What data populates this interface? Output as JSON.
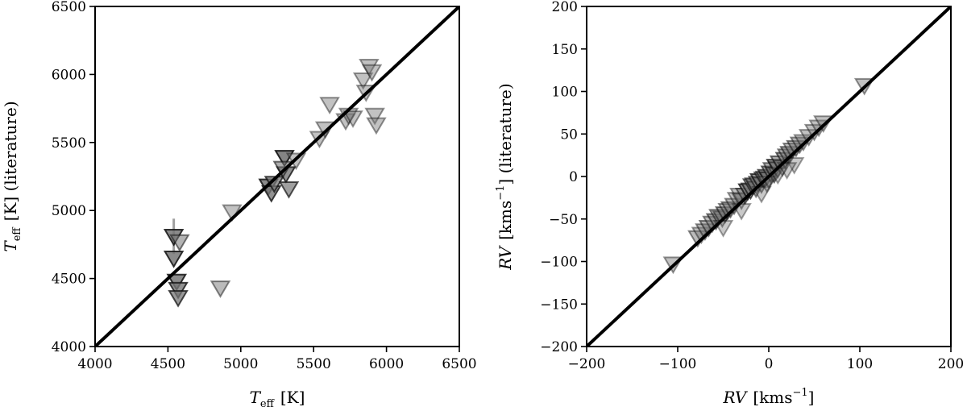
{
  "chart_data": [
    {
      "type": "scatter",
      "xlabel": {
        "main": "T",
        "sub": "eff",
        "unit": "[K]"
      },
      "ylabel": {
        "main": "T",
        "sub": "eff",
        "unit": "[K] (literature)"
      },
      "xlim": [
        4000,
        6500
      ],
      "ylim": [
        4000,
        6500
      ],
      "xticks": [
        "4000",
        "4500",
        "5000",
        "5500",
        "6000",
        "6500"
      ],
      "yticks": [
        "4000",
        "4500",
        "5000",
        "5500",
        "6000",
        "6500"
      ],
      "grid": false,
      "marker": "triangle-down",
      "reference_line": [
        [
          4000,
          4000
        ],
        [
          6500,
          6500
        ]
      ],
      "series": [
        {
          "points": [
            [
              4540,
              4810,
              0.85
            ],
            [
              4540,
              4650,
              0.85
            ],
            [
              4560,
              4480,
              0.85
            ],
            [
              4570,
              4420,
              0.8
            ],
            [
              4570,
              4360,
              0.75
            ],
            [
              4580,
              4770,
              0.55
            ],
            [
              4860,
              4430,
              0.5
            ],
            [
              4940,
              4990,
              0.45
            ],
            [
              5190,
              5180,
              0.85
            ],
            [
              5210,
              5130,
              0.8
            ],
            [
              5230,
              5200,
              0.75
            ],
            [
              5300,
              5390,
              0.9
            ],
            [
              5310,
              5270,
              0.8
            ],
            [
              5290,
              5310,
              0.6
            ],
            [
              5330,
              5160,
              0.7
            ],
            [
              5380,
              5370,
              0.45
            ],
            [
              5540,
              5530,
              0.45
            ],
            [
              5580,
              5600,
              0.45
            ],
            [
              5610,
              5780,
              0.45
            ],
            [
              5720,
              5660,
              0.45
            ],
            [
              5740,
              5700,
              0.45
            ],
            [
              5770,
              5680,
              0.45
            ],
            [
              5840,
              5960,
              0.45
            ],
            [
              5860,
              5870,
              0.45
            ],
            [
              5880,
              6060,
              0.45
            ],
            [
              5900,
              6020,
              0.45
            ],
            [
              5920,
              5700,
              0.45
            ],
            [
              5930,
              5630,
              0.45
            ]
          ],
          "errorbars": [
            [
              4540,
              4810,
              130
            ]
          ]
        }
      ]
    },
    {
      "type": "scatter",
      "xlabel": {
        "main": "RV",
        "unit": "[kms",
        "sup": "−1",
        "close": "]"
      },
      "ylabel": {
        "main": "RV",
        "unit": "[kms",
        "sup": "−1",
        "close": "] (literature)"
      },
      "xlim": [
        -200,
        200
      ],
      "ylim": [
        -200,
        200
      ],
      "xticks": [
        "−200",
        "−100",
        "0",
        "100",
        "200"
      ],
      "yticks": [
        "−200",
        "−150",
        "−100",
        "−50",
        "0",
        "50",
        "100",
        "150",
        "200"
      ],
      "grid": false,
      "marker": "triangle-down",
      "reference_line": [
        [
          -200,
          -200
        ],
        [
          200,
          200
        ]
      ],
      "series": [
        {
          "points": [
            [
              -105,
              -103,
              0.45
            ],
            [
              -78,
              -72,
              0.5
            ],
            [
              -74,
              -68,
              0.45
            ],
            [
              -70,
              -64,
              0.5
            ],
            [
              -66,
              -60,
              0.55
            ],
            [
              -62,
              -55,
              0.5
            ],
            [
              -58,
              -52,
              0.6
            ],
            [
              -55,
              -47,
              0.55
            ],
            [
              -51,
              -49,
              0.5
            ],
            [
              -48,
              -44,
              0.6
            ],
            [
              -45,
              -40,
              0.5
            ],
            [
              -42,
              -38,
              0.55
            ],
            [
              -38,
              -34,
              0.5
            ],
            [
              -35,
              -27,
              0.45
            ],
            [
              -32,
              -22,
              0.45
            ],
            [
              -30,
              -28,
              0.5
            ],
            [
              -26,
              -22,
              0.55
            ],
            [
              -23,
              -17,
              0.8
            ],
            [
              -20,
              -16,
              0.7
            ],
            [
              -18,
              -11,
              0.65
            ],
            [
              -16,
              -10,
              0.6
            ],
            [
              -14,
              -14,
              0.5
            ],
            [
              -12,
              -8,
              0.6
            ],
            [
              -10,
              -5,
              0.75
            ],
            [
              -8,
              -9,
              0.55
            ],
            [
              -6,
              -3,
              0.65
            ],
            [
              -4,
              -2,
              0.55
            ],
            [
              -2,
              0,
              0.7
            ],
            [
              0,
              -3,
              0.6
            ],
            [
              2,
              4,
              0.65
            ],
            [
              4,
              8,
              0.55
            ],
            [
              6,
              3,
              0.6
            ],
            [
              8,
              12,
              0.75
            ],
            [
              10,
              9,
              0.55
            ],
            [
              12,
              16,
              0.6
            ],
            [
              15,
              11,
              0.5
            ],
            [
              18,
              20,
              0.65
            ],
            [
              20,
              24,
              0.55
            ],
            [
              23,
              27,
              0.6
            ],
            [
              26,
              31,
              0.5
            ],
            [
              30,
              34,
              0.55
            ],
            [
              34,
              38,
              0.5
            ],
            [
              38,
              41,
              0.45
            ],
            [
              44,
              47,
              0.45
            ],
            [
              50,
              53,
              0.45
            ],
            [
              55,
              58,
              0.45
            ],
            [
              60,
              63,
              0.45
            ],
            [
              105,
              107,
              0.45
            ],
            [
              -8,
              -20,
              0.4
            ],
            [
              -2,
              -8,
              0.4
            ],
            [
              10,
              2,
              0.4
            ],
            [
              28,
              14,
              0.4
            ],
            [
              -30,
              -40,
              0.4
            ],
            [
              -50,
              -60,
              0.4
            ],
            [
              20,
              8,
              0.4
            ]
          ],
          "errorbars": []
        }
      ]
    }
  ]
}
